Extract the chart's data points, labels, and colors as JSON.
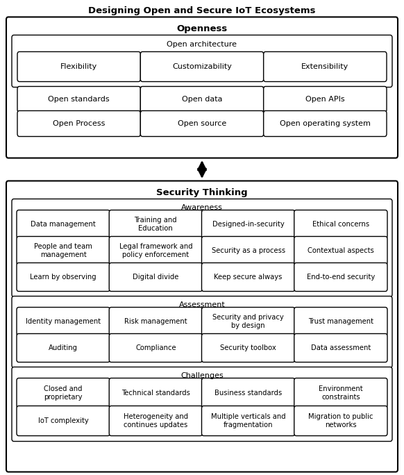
{
  "title": "Designing Open and Secure IoT Ecosystems",
  "bg_color": "#ffffff",
  "openness_label": "Openness",
  "security_label": "Security Thinking",
  "open_arch_label": "Open architecture",
  "awareness_label": "Awareness",
  "assessment_label": "Assessment",
  "challenges_label": "Challenges",
  "openness_rows": [
    [
      "Flexibility",
      "Customizability",
      "Extensibility"
    ],
    [
      "Open standards",
      "Open data",
      "Open APIs"
    ],
    [
      "Open Process",
      "Open source",
      "Open operating system"
    ]
  ],
  "awareness_rows": [
    [
      "Data management",
      "Training and\nEducation",
      "Designed-in-security",
      "Ethical concerns"
    ],
    [
      "People and team\nmanagement",
      "Legal framework and\npolicy enforcement",
      "Security as a process",
      "Contextual aspects"
    ],
    [
      "Learn by observing",
      "Digital divide",
      "Keep secure always",
      "End-to-end security"
    ]
  ],
  "assessment_rows": [
    [
      "Identity management",
      "Risk management",
      "Security and privacy\nby design",
      "Trust management"
    ],
    [
      "Auditing",
      "Compliance",
      "Security toolbox",
      "Data assessment"
    ]
  ],
  "challenges_rows": [
    [
      "Closed and\nproprietary",
      "Technical standards",
      "Business standards",
      "Environment\nconstraints"
    ],
    [
      "IoT complexity",
      "Heterogeneity and\ncontinues updates",
      "Multiple verticals and\nfragmentation",
      "Migration to public\nnetworks"
    ]
  ],
  "fig_w": 5.82,
  "fig_h": 6.84,
  "dpi": 100
}
